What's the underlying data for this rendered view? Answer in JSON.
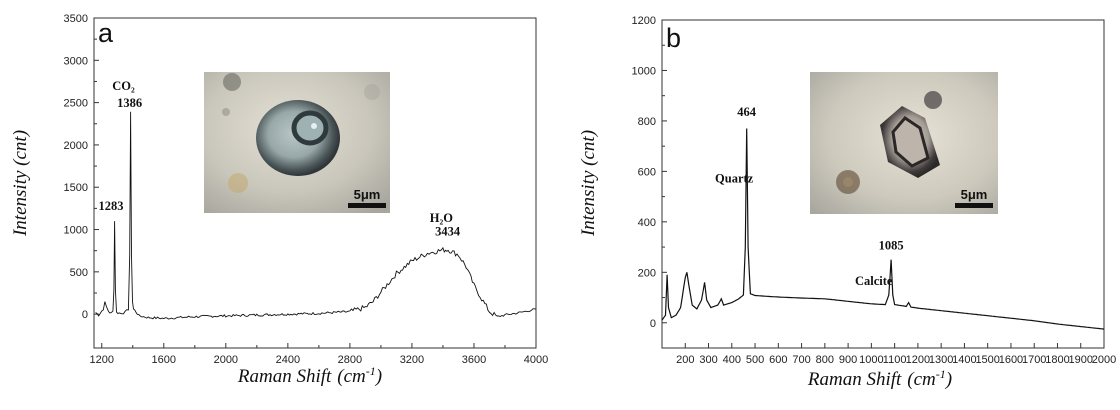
{
  "chart_data": [
    {
      "type": "line",
      "panel_label": "a",
      "xlabel": "Raman Shift",
      "xlabel_unit": "(cm",
      "xlabel_unit_sup": "-1",
      "xlabel_unit_close": ")",
      "ylabel": "Intensity (cnt)",
      "xlim": [
        1150,
        4000
      ],
      "ylim": [
        -400,
        3500
      ],
      "xticks": [
        1200,
        1600,
        2000,
        2400,
        2800,
        3200,
        3600,
        4000
      ],
      "yticks": [
        0,
        500,
        1000,
        1500,
        2000,
        2500,
        3000,
        3500
      ],
      "grid": false,
      "series": [
        {
          "points": [
            [
              1160,
              20
            ],
            [
              1180,
              -10
            ],
            [
              1200,
              40
            ],
            [
              1210,
              50
            ],
            [
              1220,
              160
            ],
            [
              1230,
              80
            ],
            [
              1245,
              30
            ],
            [
              1260,
              10
            ],
            [
              1272,
              30
            ],
            [
              1278,
              300
            ],
            [
              1283,
              1100
            ],
            [
              1288,
              300
            ],
            [
              1295,
              20
            ],
            [
              1320,
              10
            ],
            [
              1350,
              20
            ],
            [
              1372,
              60
            ],
            [
              1380,
              700
            ],
            [
              1386,
              2380
            ],
            [
              1392,
              700
            ],
            [
              1398,
              150
            ],
            [
              1405,
              60
            ],
            [
              1420,
              30
            ],
            [
              1440,
              -20
            ],
            [
              1500,
              -40
            ],
            [
              1600,
              -50
            ],
            [
              1700,
              -40
            ],
            [
              1800,
              -30
            ],
            [
              2000,
              -20
            ],
            [
              2200,
              -10
            ],
            [
              2400,
              0
            ],
            [
              2600,
              10
            ],
            [
              2800,
              30
            ],
            [
              2900,
              80
            ],
            [
              2950,
              150
            ],
            [
              3000,
              260
            ],
            [
              3100,
              480
            ],
            [
              3200,
              630
            ],
            [
              3300,
              720
            ],
            [
              3400,
              760
            ],
            [
              3434,
              760
            ],
            [
              3500,
              700
            ],
            [
              3550,
              560
            ],
            [
              3600,
              340
            ],
            [
              3650,
              180
            ],
            [
              3700,
              30
            ],
            [
              3750,
              -30
            ],
            [
              3800,
              -10
            ],
            [
              3900,
              20
            ],
            [
              4000,
              60
            ]
          ]
        }
      ],
      "annotations": [
        {
          "text": "CO₂",
          "x": 1340,
          "y": 2650
        },
        {
          "text": "1386",
          "x": 1380,
          "y": 2450
        },
        {
          "text": "1283",
          "x": 1260,
          "y": 1230
        },
        {
          "text": "H₂O",
          "x": 3390,
          "y": 1090
        },
        {
          "text": "3434",
          "x": 3430,
          "y": 930
        }
      ],
      "inset": {
        "description": "micrograph",
        "scale_bar": "5μm"
      }
    },
    {
      "type": "line",
      "panel_label": "b",
      "xlabel": "Raman Shift",
      "xlabel_unit": "(cm",
      "xlabel_unit_sup": "-1",
      "xlabel_unit_close": ")",
      "ylabel": "Intensity (cnt)",
      "xlim": [
        100,
        2000
      ],
      "ylim": [
        -100,
        1200
      ],
      "xticks": [
        200,
        300,
        400,
        500,
        600,
        700,
        800,
        900,
        1000,
        1100,
        1200,
        1300,
        1400,
        1500,
        1600,
        1700,
        1800,
        1900,
        2000
      ],
      "yticks": [
        0,
        200,
        400,
        600,
        800,
        1000,
        1200
      ],
      "grid": false,
      "series": [
        {
          "points": [
            [
              100,
              10
            ],
            [
              115,
              30
            ],
            [
              122,
              190
            ],
            [
              128,
              60
            ],
            [
              140,
              20
            ],
            [
              160,
              30
            ],
            [
              180,
              60
            ],
            [
              200,
              180
            ],
            [
              207,
              200
            ],
            [
              215,
              150
            ],
            [
              230,
              70
            ],
            [
              250,
              55
            ],
            [
              270,
              90
            ],
            [
              283,
              160
            ],
            [
              292,
              90
            ],
            [
              310,
              60
            ],
            [
              340,
              70
            ],
            [
              355,
              95
            ],
            [
              365,
              70
            ],
            [
              400,
              80
            ],
            [
              430,
              95
            ],
            [
              450,
              110
            ],
            [
              458,
              300
            ],
            [
              464,
              770
            ],
            [
              470,
              300
            ],
            [
              480,
              115
            ],
            [
              500,
              108
            ],
            [
              600,
              102
            ],
            [
              700,
              98
            ],
            [
              800,
              95
            ],
            [
              900,
              85
            ],
            [
              1000,
              75
            ],
            [
              1060,
              72
            ],
            [
              1075,
              110
            ],
            [
              1085,
              250
            ],
            [
              1092,
              110
            ],
            [
              1100,
              72
            ],
            [
              1150,
              65
            ],
            [
              1160,
              80
            ],
            [
              1170,
              62
            ],
            [
              1200,
              58
            ],
            [
              1300,
              48
            ],
            [
              1400,
              38
            ],
            [
              1500,
              28
            ],
            [
              1600,
              18
            ],
            [
              1700,
              8
            ],
            [
              1800,
              -5
            ],
            [
              1900,
              -15
            ],
            [
              2000,
              -25
            ]
          ]
        }
      ],
      "annotations": [
        {
          "text": "464",
          "x": 464,
          "y": 820
        },
        {
          "text": "Quartz",
          "x": 410,
          "y": 555
        },
        {
          "text": "1085",
          "x": 1085,
          "y": 290
        },
        {
          "text": "Calcite",
          "x": 1010,
          "y": 150
        }
      ],
      "inset": {
        "description": "micrograph",
        "scale_bar": "5μm"
      }
    }
  ]
}
